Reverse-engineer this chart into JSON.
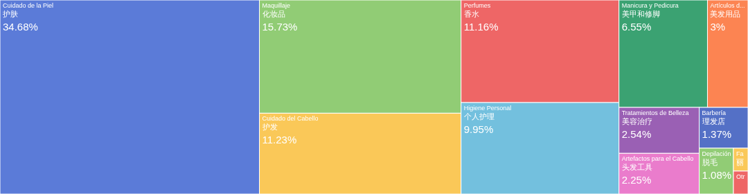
{
  "chart_data": {
    "type": "other",
    "categories": [
      "Cuidado de la Piel\n护肤",
      "Maquillaje\n化妆品",
      "Cuidado del Cabello\n护发",
      "Perfumes\n香水",
      "Higiene Personal\n个人护理",
      "Manicura y Pedicura\n美甲和修脚",
      "Artículos d...\n美发用品",
      "Tratamientos de Belleza\n美容治疗",
      "Artefactos para el Cabello\n头发工具",
      "Barbería\n理发店",
      "Depilación\n脱毛",
      "Fa\n丽",
      "Otr"
    ],
    "values": [
      34.68,
      15.73,
      11.23,
      11.16,
      9.95,
      6.55,
      3,
      2.54,
      2.25,
      1.37,
      1.08,
      null,
      null
    ],
    "value_labels": [
      "34.68%",
      "15.73%",
      "11.23%",
      "11.16%",
      "9.95%",
      "6.55%",
      "3%",
      "2.54%",
      "2.25%",
      "1.37%",
      "1.08%",
      null,
      null
    ],
    "colors": [
      "#5b7bd8",
      "#91cc75",
      "#fac858",
      "#ee6666",
      "#73c0de",
      "#3ba272",
      "#fc8452",
      "#9a60b4",
      "#ea7ccc",
      "#5470c6",
      "#91cc75",
      "#fac858",
      "#ee6666"
    ]
  }
}
